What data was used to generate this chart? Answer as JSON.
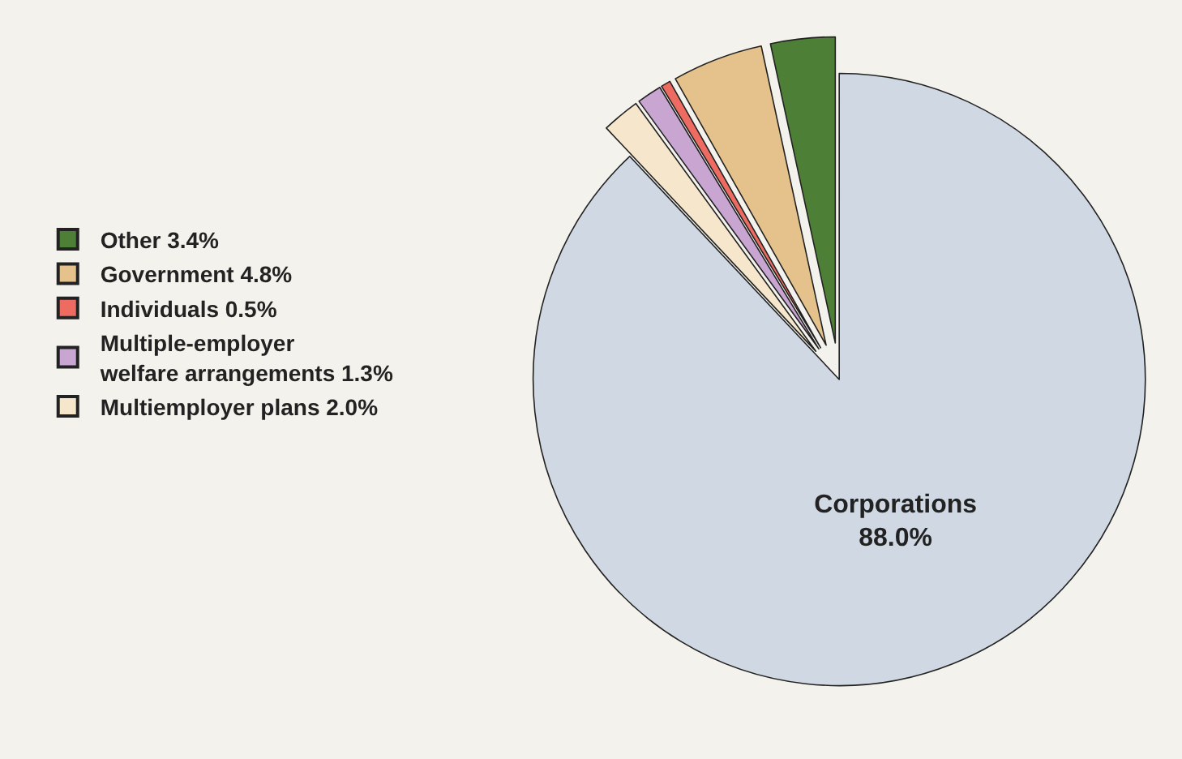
{
  "chart_data": {
    "type": "pie",
    "categories": [
      "Corporations",
      "Multiemployer plans",
      "Multiple-employer welfare arrangements",
      "Individuals",
      "Government",
      "Other"
    ],
    "values": [
      88.0,
      2.0,
      1.3,
      0.5,
      4.8,
      3.4
    ],
    "value_labels": [
      "88.0%",
      "2.0%",
      "1.3%",
      "0.5%",
      "4.8%",
      "3.4%"
    ],
    "colors": [
      "#d0d9e3",
      "#f5e6cc",
      "#c9a6d2",
      "#ee6b61",
      "#e5c18b",
      "#4e7f36"
    ],
    "legend": "left"
  }
}
